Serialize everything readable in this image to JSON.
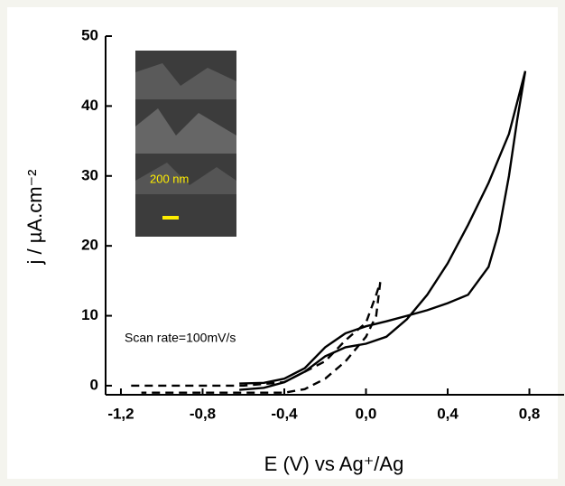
{
  "chart_data": {
    "type": "line",
    "xlabel": "E (V) vs Ag⁺/Ag",
    "ylabel": "j / µA.cm⁻²",
    "annotation": "Scan rate=100mV/s",
    "inset_label": "200 nm",
    "xlim": [
      -1.275,
      0.97
    ],
    "ylim": [
      -1.3,
      50
    ],
    "xticks": [
      {
        "value": -1.2,
        "label": "-1,2"
      },
      {
        "value": -0.8,
        "label": "-0,8"
      },
      {
        "value": -0.4,
        "label": "-0,4"
      },
      {
        "value": 0.0,
        "label": "0,0"
      },
      {
        "value": 0.4,
        "label": "0,4"
      },
      {
        "value": 0.8,
        "label": "0,8"
      }
    ],
    "yticks": [
      0,
      10,
      20,
      30,
      40,
      50
    ],
    "series": [
      {
        "color": "#000000",
        "dash": false,
        "x": [
          -0.62,
          -0.5,
          -0.4,
          -0.3,
          -0.2,
          -0.1,
          0.0,
          0.1,
          0.2,
          0.3,
          0.4,
          0.5,
          0.6,
          0.7,
          0.78,
          0.74,
          0.7,
          0.65,
          0.6,
          0.5,
          0.4,
          0.3,
          0.2,
          0.1,
          0.0,
          -0.1,
          -0.2,
          -0.3,
          -0.4,
          -0.5,
          -0.62
        ],
        "values": [
          -0.6,
          -0.3,
          0.5,
          2.0,
          4.2,
          5.5,
          6.0,
          7.0,
          9.5,
          13,
          17.5,
          23,
          29,
          36,
          45,
          38,
          30,
          22,
          17,
          13,
          11.8,
          10.8,
          10.0,
          9.2,
          8.5,
          7.5,
          5.5,
          2.5,
          1.0,
          0.4,
          0.3
        ]
      },
      {
        "color": "#000000",
        "dash": true,
        "x": [
          -1.15,
          -0.8,
          -0.6,
          -0.4,
          -0.3,
          -0.2,
          -0.1,
          0.0,
          0.05,
          0.07,
          0.05,
          0.0,
          -0.1,
          -0.2,
          -0.3,
          -0.4,
          -0.6,
          -0.8,
          -1.1
        ],
        "values": [
          0,
          0,
          0,
          0.5,
          2.0,
          3.5,
          6.5,
          9.0,
          13,
          14.8,
          10,
          7,
          3.5,
          1.0,
          -0.5,
          -1.0,
          -1.0,
          -1.0,
          -1.0
        ]
      }
    ]
  }
}
